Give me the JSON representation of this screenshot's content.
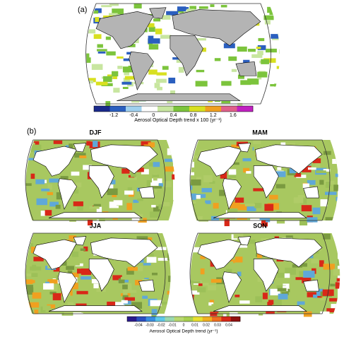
{
  "panel_a": {
    "label": "(a)",
    "colorbar": {
      "ticks": [
        -1.2,
        -0.4,
        0,
        0.4,
        0.8,
        1.2,
        1.6
      ],
      "colors": [
        "#1a2a8c",
        "#2b5fbf",
        "#9fd0ee",
        "#ffffff",
        "#c8e6a0",
        "#7cc43c",
        "#d8e020",
        "#f0a020",
        "#e0608a",
        "#c020c0"
      ],
      "label": "Aerosol Optical Depth trend x 100 (yr⁻¹)"
    }
  },
  "panel_b": {
    "label": "(b)",
    "maps": [
      {
        "title": "DJF"
      },
      {
        "title": "MAM"
      },
      {
        "title": "JJA"
      },
      {
        "title": "SON"
      }
    ],
    "colorbar": {
      "ticks": [
        -0.04,
        -0.03,
        -0.02,
        -0.01,
        0,
        0.01,
        0.02,
        0.03,
        0.04
      ],
      "colors": [
        "#2a1a8c",
        "#2b4fc0",
        "#3a8ee0",
        "#5fc8e8",
        "#9ad8b0",
        "#b8d870",
        "#a8d050",
        "#e8e030",
        "#f0b020",
        "#f07020",
        "#d82818",
        "#901010"
      ],
      "label": "Aerosol Optical Depth trend (yr⁻¹)"
    }
  }
}
